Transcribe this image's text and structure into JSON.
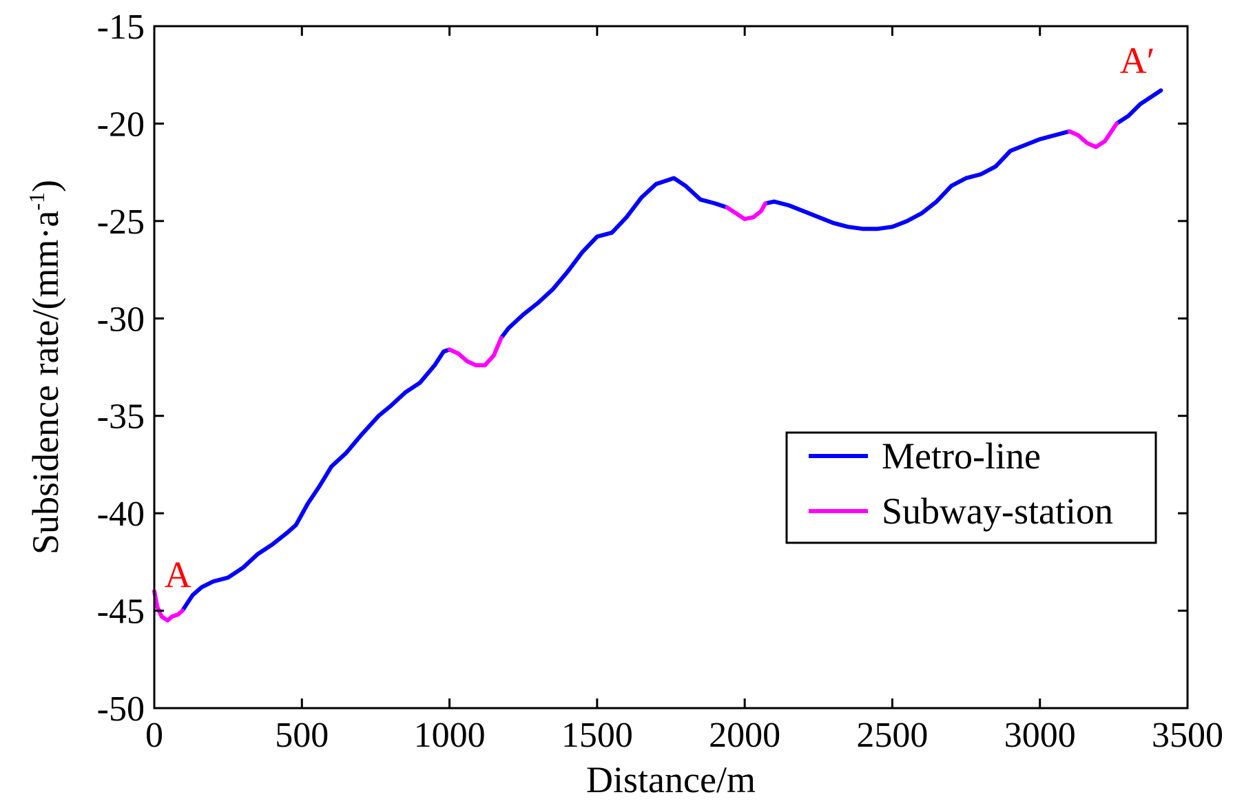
{
  "chart_data": {
    "type": "line",
    "title": "",
    "xlabel": "Distance/m",
    "ylabel": "Subsidence rate/(mm·a",
    "ylabel_superscript": "-1",
    "ylabel_close": ")",
    "xlim": [
      0,
      3500
    ],
    "ylim": [
      -50,
      -15
    ],
    "xticks": [
      0,
      500,
      1000,
      1500,
      2000,
      2500,
      3000,
      3500
    ],
    "xtick_labels": [
      "0",
      "500",
      "1000",
      "1500",
      "2000",
      "2500",
      "3000",
      "3500"
    ],
    "yticks": [
      -50,
      -45,
      -40,
      -35,
      -30,
      -25,
      -20,
      -15
    ],
    "ytick_labels": [
      "-50",
      "-45",
      "-40",
      "-35",
      "-30",
      "-25",
      "-20",
      "-15"
    ],
    "grid": false,
    "legend_position": "center-right",
    "annotations": [
      {
        "text": "A",
        "x": 80,
        "y": -43.8,
        "color": "#ff0000"
      },
      {
        "text": "A′",
        "x": 3330,
        "y": -17.4,
        "color": "#ff0000"
      }
    ],
    "series": [
      {
        "name": "Metro-line",
        "color": "#0000ff",
        "segments": [
          [
            [
              95,
              -45.0
            ],
            [
              130,
              -44.2
            ],
            [
              160,
              -43.8
            ],
            [
              200,
              -43.5
            ],
            [
              250,
              -43.3
            ],
            [
              300,
              -42.8
            ],
            [
              350,
              -42.1
            ],
            [
              400,
              -41.6
            ],
            [
              450,
              -41.0
            ],
            [
              480,
              -40.6
            ],
            [
              520,
              -39.5
            ],
            [
              560,
              -38.6
            ],
            [
              600,
              -37.6
            ],
            [
              650,
              -36.9
            ],
            [
              700,
              -36.0
            ],
            [
              760,
              -35.0
            ],
            [
              800,
              -34.5
            ],
            [
              850,
              -33.8
            ],
            [
              900,
              -33.3
            ],
            [
              950,
              -32.4
            ],
            [
              980,
              -31.7
            ],
            [
              1000,
              -31.6
            ]
          ],
          [
            [
              1175,
              -31.0
            ],
            [
              1200,
              -30.5
            ],
            [
              1250,
              -29.8
            ],
            [
              1300,
              -29.2
            ],
            [
              1350,
              -28.5
            ],
            [
              1400,
              -27.6
            ],
            [
              1450,
              -26.6
            ],
            [
              1500,
              -25.8
            ],
            [
              1550,
              -25.6
            ],
            [
              1600,
              -24.8
            ],
            [
              1650,
              -23.8
            ],
            [
              1700,
              -23.1
            ],
            [
              1740,
              -22.9
            ],
            [
              1760,
              -22.8
            ],
            [
              1800,
              -23.2
            ],
            [
              1850,
              -23.9
            ],
            [
              1900,
              -24.1
            ],
            [
              1940,
              -24.3
            ]
          ],
          [
            [
              2070,
              -24.1
            ],
            [
              2100,
              -24.0
            ],
            [
              2150,
              -24.2
            ],
            [
              2200,
              -24.5
            ],
            [
              2250,
              -24.8
            ],
            [
              2300,
              -25.1
            ],
            [
              2350,
              -25.3
            ],
            [
              2400,
              -25.4
            ],
            [
              2450,
              -25.4
            ],
            [
              2500,
              -25.3
            ],
            [
              2550,
              -25.0
            ],
            [
              2600,
              -24.6
            ],
            [
              2650,
              -24.0
            ],
            [
              2700,
              -23.2
            ],
            [
              2750,
              -22.8
            ],
            [
              2800,
              -22.6
            ],
            [
              2850,
              -22.2
            ],
            [
              2900,
              -21.4
            ],
            [
              2950,
              -21.1
            ],
            [
              3000,
              -20.8
            ],
            [
              3050,
              -20.6
            ],
            [
              3100,
              -20.4
            ]
          ],
          [
            [
              3260,
              -20.0
            ],
            [
              3300,
              -19.6
            ],
            [
              3340,
              -19.0
            ],
            [
              3380,
              -18.6
            ],
            [
              3410,
              -18.3
            ]
          ]
        ]
      },
      {
        "name": "Subway-station",
        "color": "#ff00ff",
        "segments": [
          [
            [
              0,
              -44.0
            ],
            [
              10,
              -44.8
            ],
            [
              25,
              -45.3
            ],
            [
              45,
              -45.5
            ],
            [
              60,
              -45.3
            ],
            [
              80,
              -45.2
            ],
            [
              95,
              -45.0
            ]
          ],
          [
            [
              1000,
              -31.6
            ],
            [
              1030,
              -31.8
            ],
            [
              1060,
              -32.2
            ],
            [
              1090,
              -32.4
            ],
            [
              1120,
              -32.4
            ],
            [
              1150,
              -31.9
            ],
            [
              1175,
              -31.0
            ]
          ],
          [
            [
              1940,
              -24.3
            ],
            [
              1970,
              -24.6
            ],
            [
              2000,
              -24.9
            ],
            [
              2030,
              -24.8
            ],
            [
              2055,
              -24.5
            ],
            [
              2070,
              -24.1
            ]
          ],
          [
            [
              3100,
              -20.4
            ],
            [
              3130,
              -20.6
            ],
            [
              3160,
              -21.0
            ],
            [
              3190,
              -21.2
            ],
            [
              3220,
              -20.9
            ],
            [
              3260,
              -20.0
            ]
          ]
        ]
      }
    ]
  }
}
